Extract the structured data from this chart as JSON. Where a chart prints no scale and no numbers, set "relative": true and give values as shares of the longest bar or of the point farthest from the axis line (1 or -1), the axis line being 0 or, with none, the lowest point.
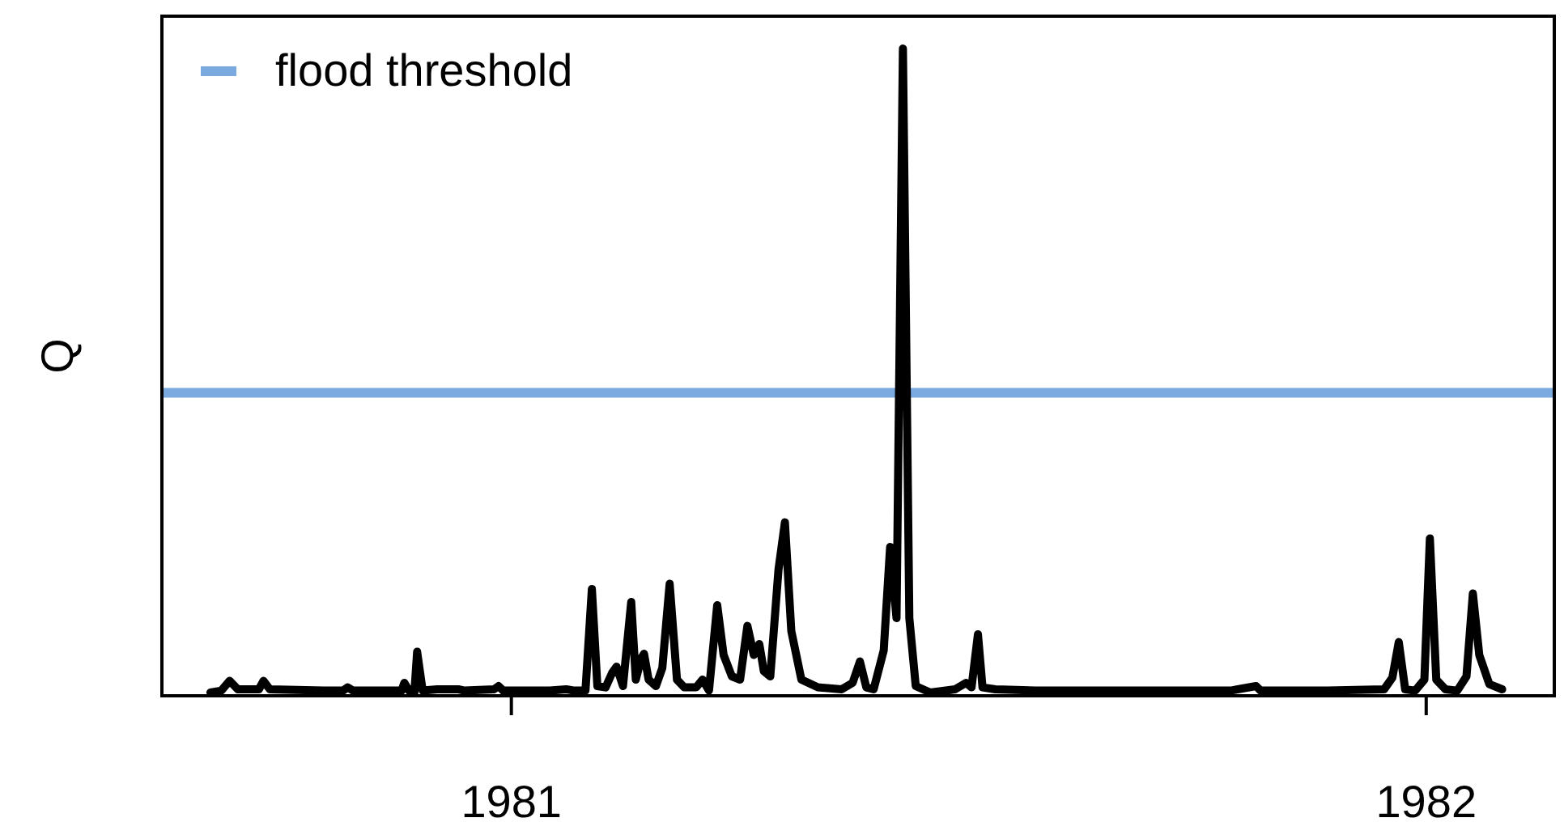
{
  "chart_data": {
    "type": "line",
    "ylabel": "Q",
    "relative": true,
    "xlim": [
      1980.618,
      1982.14
    ],
    "xticks": [
      1981,
      1982
    ],
    "grid": false,
    "legend": "top left",
    "marker": "none",
    "line_style": "solid",
    "series": [
      {
        "color": "#000000",
        "x": [
          1980.671,
          1980.683,
          1980.692,
          1980.701,
          1980.724,
          1980.729,
          1980.736,
          1980.795,
          1980.816,
          1980.821,
          1980.827,
          1980.88,
          1980.883,
          1980.888,
          1980.894,
          1980.897,
          1980.903,
          1980.919,
          1980.942,
          1980.949,
          1980.981,
          1980.986,
          1980.991,
          1981.042,
          1981.06,
          1981.069,
          1981.081,
          1981.088,
          1981.094,
          1981.103,
          1981.11,
          1981.115,
          1981.122,
          1981.131,
          1981.136,
          1981.142,
          1981.145,
          1981.15,
          1981.158,
          1981.165,
          1981.173,
          1981.181,
          1981.189,
          1981.202,
          1981.209,
          1981.216,
          1981.225,
          1981.232,
          1981.241,
          1981.25,
          1981.258,
          1981.265,
          1981.271,
          1981.276,
          1981.283,
          1981.292,
          1981.299,
          1981.306,
          1981.317,
          1981.335,
          1981.361,
          1981.373,
          1981.381,
          1981.388,
          1981.396,
          1981.407,
          1981.414,
          1981.421,
          1981.428,
          1981.435,
          1981.442,
          1981.458,
          1981.485,
          1981.497,
          1981.503,
          1981.51,
          1981.515,
          1981.529,
          1981.573,
          1981.68,
          1981.786,
          1981.814,
          1981.819,
          1981.892,
          1981.954,
          1981.963,
          1981.97,
          1981.977,
          1981.988,
          1981.998,
          1982.004,
          1982.011,
          1982.021,
          1982.034,
          1982.044,
          1982.051,
          1982.058,
          1982.069,
          1982.083
        ],
        "values": [
          0.005,
          0.008,
          0.023,
          0.01,
          0.01,
          0.023,
          0.01,
          0.008,
          0.008,
          0.013,
          0.008,
          0.008,
          0.02,
          0.008,
          0.005,
          0.068,
          0.008,
          0.01,
          0.01,
          0.008,
          0.01,
          0.015,
          0.008,
          0.008,
          0.01,
          0.008,
          0.008,
          0.165,
          0.015,
          0.013,
          0.035,
          0.045,
          0.015,
          0.145,
          0.025,
          0.058,
          0.065,
          0.025,
          0.015,
          0.043,
          0.173,
          0.025,
          0.013,
          0.013,
          0.025,
          0.008,
          0.14,
          0.063,
          0.03,
          0.025,
          0.108,
          0.063,
          0.08,
          0.038,
          0.03,
          0.195,
          0.268,
          0.1,
          0.025,
          0.013,
          0.01,
          0.02,
          0.053,
          0.013,
          0.01,
          0.07,
          0.23,
          0.12,
          1,
          0.12,
          0.015,
          0.005,
          0.01,
          0.02,
          0.013,
          0.095,
          0.013,
          0.01,
          0.008,
          0.008,
          0.008,
          0.015,
          0.008,
          0.008,
          0.01,
          0.028,
          0.083,
          0.01,
          0.008,
          0.025,
          0.243,
          0.025,
          0.01,
          0.008,
          0.03,
          0.158,
          0.063,
          0.018,
          0.01
        ]
      }
    ],
    "ref_lines": [
      {
        "axis": "y",
        "value": 0.468,
        "label": "flood threshold",
        "color": "#7aaadf"
      }
    ]
  }
}
